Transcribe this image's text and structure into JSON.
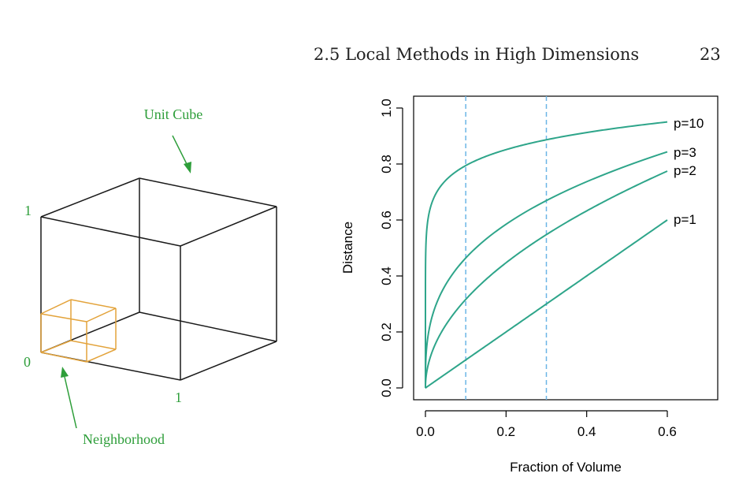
{
  "header": {
    "title": "2.5 Local Methods in High Dimensions",
    "page_number": "23"
  },
  "cube_figure": {
    "unit_cube_label": "Unit Cube",
    "neighborhood_label": "Neighborhood",
    "axis_label_1_top": "1",
    "axis_label_0": "0",
    "axis_label_1_bottom": "1",
    "colors": {
      "label": "#2e9e3a",
      "cube": "#1a1a1a",
      "neighborhood": "#e3a33b"
    }
  },
  "chart_data": {
    "type": "line",
    "xlabel": "Fraction of Volume",
    "ylabel": "Distance",
    "xlim": [
      0,
      0.6
    ],
    "ylim": [
      0,
      1.0
    ],
    "xticks": [
      "0.0",
      "0.2",
      "0.4",
      "0.6"
    ],
    "yticks": [
      "0.0",
      "0.2",
      "0.4",
      "0.6",
      "0.8",
      "1.0"
    ],
    "vlines": [
      0.1,
      0.3
    ],
    "series": [
      {
        "name": "p=10",
        "p": 10,
        "label": "p=10"
      },
      {
        "name": "p=3",
        "p": 3,
        "label": "p=3"
      },
      {
        "name": "p=2",
        "p": 2,
        "label": "p=2"
      },
      {
        "name": "p=1",
        "p": 1,
        "label": "p=1"
      }
    ],
    "colors": {
      "line": "#2ea58a",
      "vline": "#6bb5e6",
      "axis": "#000000"
    }
  }
}
